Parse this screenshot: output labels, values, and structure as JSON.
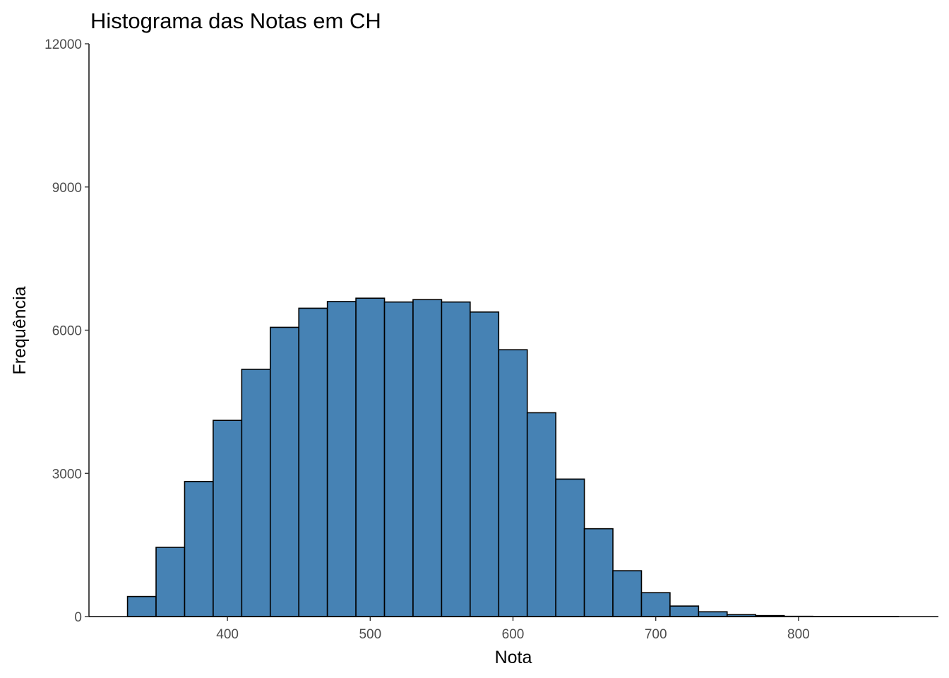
{
  "chart_data": {
    "type": "bar",
    "title": "Histograma das Notas em CH",
    "xlabel": "Nota",
    "ylabel": "Frequência",
    "xlim": [
      303,
      898
    ],
    "ylim": [
      0,
      12000
    ],
    "x_ticks": [
      400,
      500,
      600,
      700,
      800
    ],
    "y_ticks": [
      0,
      3000,
      6000,
      9000,
      12000
    ],
    "bin_width": 20,
    "bins": [
      {
        "start": 330,
        "end": 350,
        "value": 420
      },
      {
        "start": 350,
        "end": 370,
        "value": 1450
      },
      {
        "start": 370,
        "end": 390,
        "value": 2830
      },
      {
        "start": 390,
        "end": 410,
        "value": 4110
      },
      {
        "start": 410,
        "end": 430,
        "value": 5180
      },
      {
        "start": 430,
        "end": 450,
        "value": 6060
      },
      {
        "start": 450,
        "end": 470,
        "value": 6460
      },
      {
        "start": 470,
        "end": 490,
        "value": 6600
      },
      {
        "start": 490,
        "end": 510,
        "value": 6670
      },
      {
        "start": 510,
        "end": 530,
        "value": 6590
      },
      {
        "start": 530,
        "end": 550,
        "value": 6640
      },
      {
        "start": 550,
        "end": 570,
        "value": 6590
      },
      {
        "start": 570,
        "end": 590,
        "value": 6380
      },
      {
        "start": 590,
        "end": 610,
        "value": 5590
      },
      {
        "start": 610,
        "end": 630,
        "value": 4270
      },
      {
        "start": 630,
        "end": 650,
        "value": 2880
      },
      {
        "start": 650,
        "end": 670,
        "value": 1840
      },
      {
        "start": 670,
        "end": 690,
        "value": 960
      },
      {
        "start": 690,
        "end": 710,
        "value": 500
      },
      {
        "start": 710,
        "end": 730,
        "value": 220
      },
      {
        "start": 730,
        "end": 750,
        "value": 100
      },
      {
        "start": 750,
        "end": 770,
        "value": 40
      },
      {
        "start": 770,
        "end": 790,
        "value": 20
      },
      {
        "start": 790,
        "end": 810,
        "value": 5
      },
      {
        "start": 810,
        "end": 830,
        "value": 3
      },
      {
        "start": 830,
        "end": 850,
        "value": 2
      },
      {
        "start": 850,
        "end": 870,
        "value": 1
      }
    ],
    "bar_fill": "#4682b4",
    "bar_stroke": "#000000",
    "grid": false,
    "legend": "none"
  }
}
